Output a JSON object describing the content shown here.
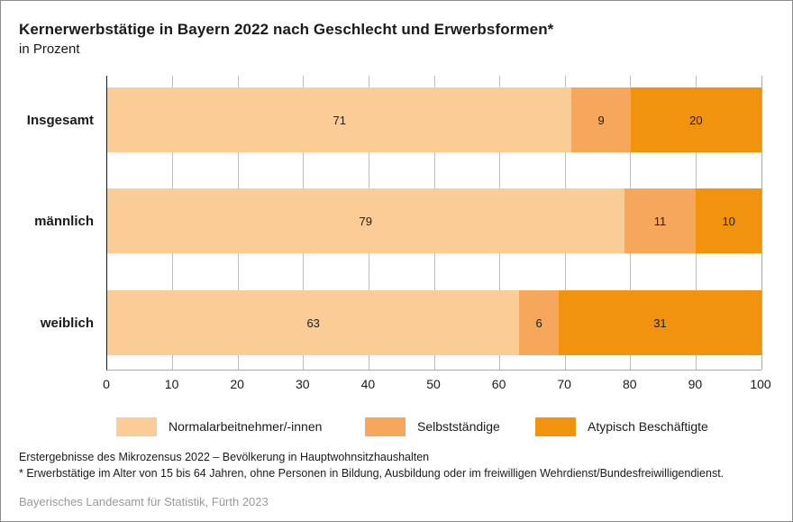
{
  "title": "Kernerwerbstätige in Bayern 2022 nach Geschlecht und Erwerbsformen*",
  "subtitle": "in Prozent",
  "chart_data": {
    "type": "bar",
    "orientation": "horizontal",
    "stacked": true,
    "title": "Kernerwerbstätige in Bayern 2022 nach Geschlecht und Erwerbsformen*",
    "subtitle": "in Prozent",
    "categories": [
      "Insgesamt",
      "männlich",
      "weiblich"
    ],
    "series": [
      {
        "name": "Normalarbeitnehmer/-innen",
        "color": "#FACC96",
        "values": [
          71,
          79,
          63
        ]
      },
      {
        "name": "Selbstständige",
        "color": "#F6A75C",
        "values": [
          9,
          11,
          6
        ]
      },
      {
        "name": "Atypisch Beschäftigte",
        "color": "#F2930D",
        "values": [
          20,
          10,
          31
        ]
      }
    ],
    "xlim": [
      0,
      100
    ],
    "x_ticks": [
      0,
      10,
      20,
      30,
      40,
      50,
      60,
      70,
      80,
      90,
      100
    ],
    "grid": "vertical-gridlines-on",
    "legend_position": "bottom",
    "value_labels": "inside-center"
  },
  "footnotes": [
    "Erstergebnisse des Mikrozensus 2022 – Bevölkerung in Hauptwohnsitzhaushalten",
    "*  Erwerbstätige im Alter von 15 bis 64 Jahren, ohne Personen in Bildung, Ausbildung oder im freiwilligen Wehrdienst/Bundesfreiwilligendienst."
  ],
  "source": "Bayerisches Landesamt für Statistik, Fürth 2023"
}
